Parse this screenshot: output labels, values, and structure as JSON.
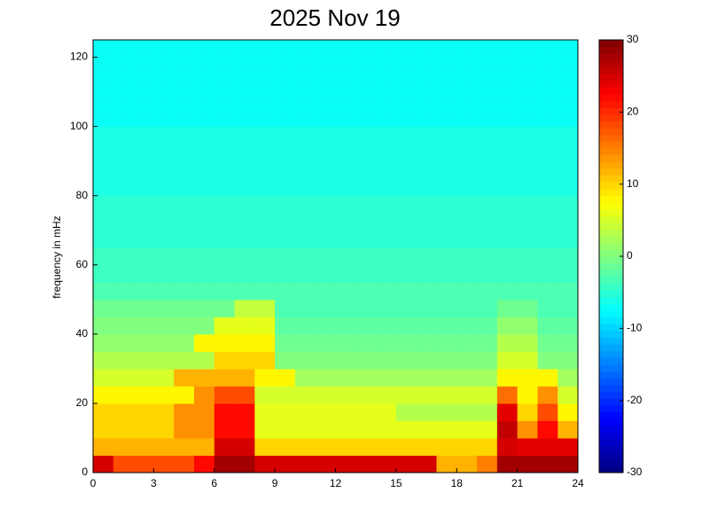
{
  "chart_data": {
    "type": "heatmap",
    "title": "2025 Nov 19",
    "ylabel": "frequency in mHz",
    "colormap": "jet",
    "xlim": [
      0,
      24
    ],
    "xticks": [
      0,
      3,
      6,
      9,
      12,
      15,
      18,
      21,
      24
    ],
    "ylim": [
      0,
      125
    ],
    "yticks": [
      0,
      20,
      40,
      60,
      80,
      100,
      120
    ],
    "clim": [
      -30,
      30
    ],
    "cticks": [
      -30,
      -20,
      -10,
      0,
      10,
      20,
      30
    ],
    "z": [
      [
        25,
        18,
        18,
        18,
        18,
        22,
        28,
        28,
        25,
        25,
        25,
        25,
        25,
        25,
        25,
        25,
        25,
        12,
        12,
        15,
        28,
        28,
        28,
        28
      ],
      [
        12,
        12,
        12,
        12,
        12,
        12,
        25,
        25,
        10,
        10,
        10,
        10,
        10,
        10,
        10,
        10,
        10,
        10,
        10,
        10,
        25,
        24,
        24,
        24
      ],
      [
        10,
        10,
        10,
        10,
        14,
        14,
        22,
        22,
        6,
        6,
        6,
        6,
        6,
        6,
        6,
        6,
        6,
        6,
        6,
        6,
        26,
        14,
        22,
        12
      ],
      [
        10,
        10,
        10,
        10,
        14,
        14,
        22,
        22,
        6,
        6,
        6,
        6,
        6,
        6,
        6,
        3,
        3,
        3,
        3,
        3,
        24,
        10,
        18,
        8
      ],
      [
        8,
        8,
        8,
        8,
        8,
        14,
        18,
        18,
        5,
        5,
        5,
        5,
        5,
        5,
        5,
        5,
        5,
        5,
        5,
        5,
        16,
        8,
        14,
        5
      ],
      [
        5,
        5,
        5,
        5,
        12,
        12,
        12,
        12,
        8,
        8,
        2,
        2,
        2,
        2,
        2,
        2,
        2,
        2,
        2,
        2,
        8,
        8,
        8,
        2
      ],
      [
        3,
        3,
        3,
        3,
        3,
        3,
        10,
        10,
        10,
        0,
        0,
        0,
        0,
        0,
        0,
        0,
        0,
        0,
        0,
        0,
        5,
        5,
        0,
        0
      ],
      [
        1,
        1,
        1,
        1,
        1,
        8,
        8,
        8,
        8,
        -1,
        -1,
        -1,
        -1,
        -1,
        -1,
        -1,
        -1,
        -1,
        -1,
        -1,
        3,
        3,
        -1,
        -1
      ],
      [
        0,
        0,
        0,
        0,
        0,
        0,
        6,
        6,
        6,
        -2,
        -2,
        -2,
        -2,
        -2,
        -2,
        -2,
        -2,
        -2,
        -2,
        -2,
        1,
        1,
        -2,
        -2
      ],
      [
        -1,
        -1,
        -1,
        -1,
        -1,
        -1,
        -1,
        4,
        4,
        -3,
        -3,
        -3,
        -3,
        -3,
        -3,
        -3,
        -3,
        -3,
        -3,
        -3,
        -1,
        -1,
        -3,
        -3
      ],
      [
        -3,
        -3,
        -3,
        -3,
        -3,
        -3,
        -3,
        -3,
        -3,
        -3,
        -3,
        -3,
        -3,
        -3,
        -3,
        -3,
        -3,
        -3,
        -3,
        -3,
        -3,
        -3,
        -3,
        -3
      ],
      [
        -4,
        -4,
        -4,
        -4,
        -4,
        -4,
        -4,
        -4,
        -4,
        -4,
        -4,
        -4,
        -4,
        -4,
        -4,
        -4,
        -4,
        -4,
        -4,
        -4,
        -4,
        -4,
        -4,
        -4
      ],
      [
        -4,
        -4,
        -4,
        -4,
        -4,
        -4,
        -4,
        -4,
        -4,
        -4,
        -4,
        -4,
        -4,
        -4,
        -4,
        -4,
        -4,
        -4,
        -4,
        -4,
        -4,
        -4,
        -4,
        -4
      ],
      [
        -5,
        -5,
        -5,
        -5,
        -5,
        -5,
        -5,
        -5,
        -5,
        -5,
        -5,
        -5,
        -5,
        -5,
        -5,
        -5,
        -5,
        -5,
        -5,
        -5,
        -5,
        -5,
        -5,
        -5
      ],
      [
        -5,
        -5,
        -5,
        -5,
        -5,
        -5,
        -5,
        -5,
        -5,
        -5,
        -5,
        -5,
        -5,
        -5,
        -5,
        -5,
        -5,
        -5,
        -5,
        -5,
        -5,
        -5,
        -5,
        -5
      ],
      [
        -5,
        -5,
        -5,
        -5,
        -5,
        -5,
        -5,
        -5,
        -5,
        -5,
        -5,
        -5,
        -5,
        -5,
        -5,
        -5,
        -5,
        -5,
        -5,
        -5,
        -5,
        -5,
        -5,
        -5
      ],
      [
        -6,
        -6,
        -6,
        -6,
        -6,
        -6,
        -6,
        -6,
        -6,
        -6,
        -6,
        -6,
        -6,
        -6,
        -6,
        -6,
        -6,
        -6,
        -6,
        -6,
        -6,
        -6,
        -6,
        -6
      ],
      [
        -6,
        -6,
        -6,
        -6,
        -6,
        -6,
        -6,
        -6,
        -6,
        -6,
        -6,
        -6,
        -6,
        -6,
        -6,
        -6,
        -6,
        -6,
        -6,
        -6,
        -6,
        -6,
        -6,
        -6
      ],
      [
        -6,
        -6,
        -6,
        -6,
        -6,
        -6,
        -6,
        -6,
        -6,
        -6,
        -6,
        -6,
        -6,
        -6,
        -6,
        -6,
        -6,
        -6,
        -6,
        -6,
        -6,
        -6,
        -6,
        -6
      ],
      [
        -6,
        -6,
        -6,
        -6,
        -6,
        -6,
        -6,
        -6,
        -6,
        -6,
        -6,
        -6,
        -6,
        -6,
        -6,
        -6,
        -6,
        -6,
        -6,
        -6,
        -6,
        -6,
        -6,
        -6
      ],
      [
        -7,
        -7,
        -7,
        -7,
        -7,
        -7,
        -7,
        -7,
        -7,
        -7,
        -7,
        -7,
        -7,
        -7,
        -7,
        -7,
        -7,
        -7,
        -7,
        -7,
        -7,
        -7,
        -7,
        -7
      ],
      [
        -7,
        -7,
        -7,
        -7,
        -7,
        -7,
        -7,
        -7,
        -7,
        -7,
        -7,
        -7,
        -7,
        -7,
        -7,
        -7,
        -7,
        -7,
        -7,
        -7,
        -7,
        -7,
        -7,
        -7
      ],
      [
        -7,
        -7,
        -7,
        -7,
        -7,
        -7,
        -7,
        -7,
        -7,
        -7,
        -7,
        -7,
        -7,
        -7,
        -7,
        -7,
        -7,
        -7,
        -7,
        -7,
        -7,
        -7,
        -7,
        -7
      ],
      [
        -7,
        -7,
        -7,
        -7,
        -7,
        -7,
        -7,
        -7,
        -7,
        -7,
        -7,
        -7,
        -7,
        -7,
        -7,
        -7,
        -7,
        -7,
        -7,
        -7,
        -7,
        -7,
        -7,
        -7
      ],
      [
        -7,
        -7,
        -7,
        -7,
        -7,
        -7,
        -7,
        -7,
        -7,
        -7,
        -7,
        -7,
        -7,
        -7,
        -7,
        -7,
        -7,
        -7,
        -7,
        -7,
        -7,
        -7,
        -7,
        -7
      ]
    ]
  }
}
